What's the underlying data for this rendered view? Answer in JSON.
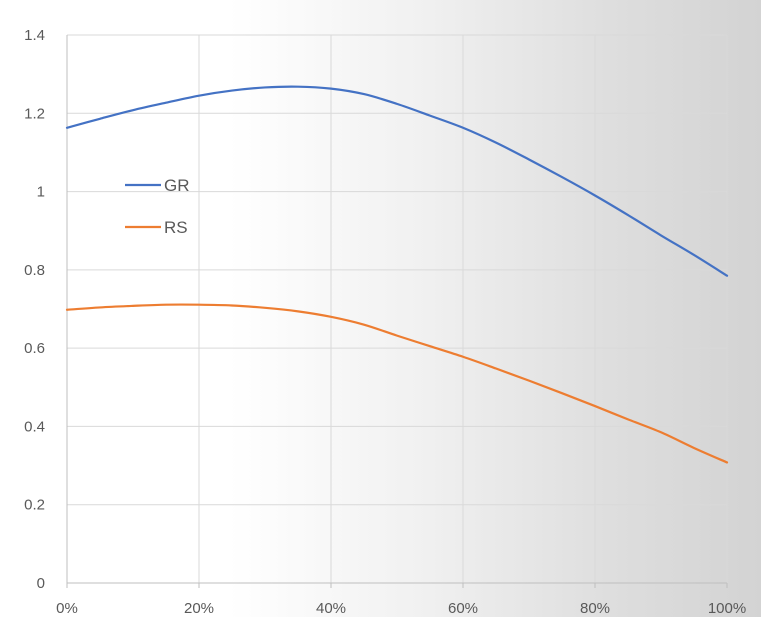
{
  "chart_data": {
    "type": "line",
    "title": "",
    "xlabel": "",
    "ylabel": "",
    "x": [
      0,
      5,
      10,
      15,
      20,
      25,
      30,
      35,
      40,
      45,
      50,
      55,
      60,
      65,
      70,
      75,
      80,
      85,
      90,
      95,
      100
    ],
    "x_tick_labels": [
      "0%",
      "20%",
      "40%",
      "60%",
      "80%",
      "100%"
    ],
    "x_ticks": [
      0,
      20,
      40,
      60,
      80,
      100
    ],
    "xlim": [
      0,
      100
    ],
    "y_tick_labels": [
      "0",
      "0.2",
      "0.4",
      "0.6",
      "0.8",
      "1",
      "1.2",
      "1.4"
    ],
    "y_ticks": [
      0,
      0.2,
      0.4,
      0.6,
      0.8,
      1.0,
      1.2,
      1.4
    ],
    "ylim": [
      0,
      1.4
    ],
    "grid": true,
    "legend_position": "left-upper",
    "series": [
      {
        "name": "GR",
        "color": "#4472C4",
        "values": [
          1.163,
          1.186,
          1.208,
          1.227,
          1.245,
          1.258,
          1.266,
          1.268,
          1.263,
          1.249,
          1.224,
          1.194,
          1.163,
          1.125,
          1.082,
          1.037,
          0.99,
          0.94,
          0.888,
          0.838,
          0.785
        ]
      },
      {
        "name": "RS",
        "color": "#ED7D31",
        "values": [
          0.698,
          0.704,
          0.708,
          0.711,
          0.711,
          0.709,
          0.703,
          0.694,
          0.68,
          0.66,
          0.632,
          0.605,
          0.578,
          0.548,
          0.517,
          0.485,
          0.452,
          0.418,
          0.385,
          0.345,
          0.308
        ]
      }
    ]
  }
}
